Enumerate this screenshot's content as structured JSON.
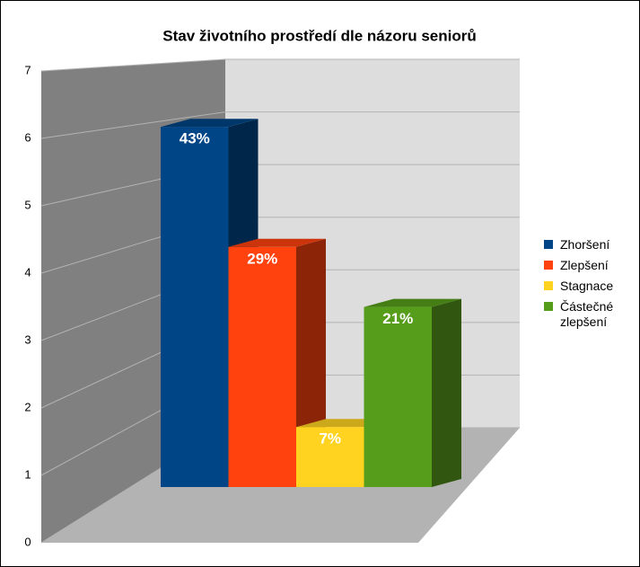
{
  "chart_data": {
    "type": "bar3d",
    "title": "Stav životního prostředí dle názoru seniorů",
    "series": [
      {
        "name": "Zhoršení",
        "color": "#004586",
        "values": [
          6
        ],
        "value_labels": [
          "43%"
        ]
      },
      {
        "name": "Zlepšení",
        "color": "#ff420e",
        "values": [
          4
        ],
        "value_labels": [
          "29%"
        ]
      },
      {
        "name": "Stagnace",
        "color": "#ffd320",
        "values": [
          1
        ],
        "value_labels": [
          "7%"
        ]
      },
      {
        "name": "Částečné zlepšení",
        "color": "#579d1c",
        "values": [
          3
        ],
        "value_labels": [
          "21%"
        ]
      }
    ],
    "ylim": [
      0,
      7
    ],
    "yticks": [
      0,
      1,
      2,
      3,
      4,
      5,
      6,
      7
    ],
    "grid": true,
    "legend": "right"
  }
}
